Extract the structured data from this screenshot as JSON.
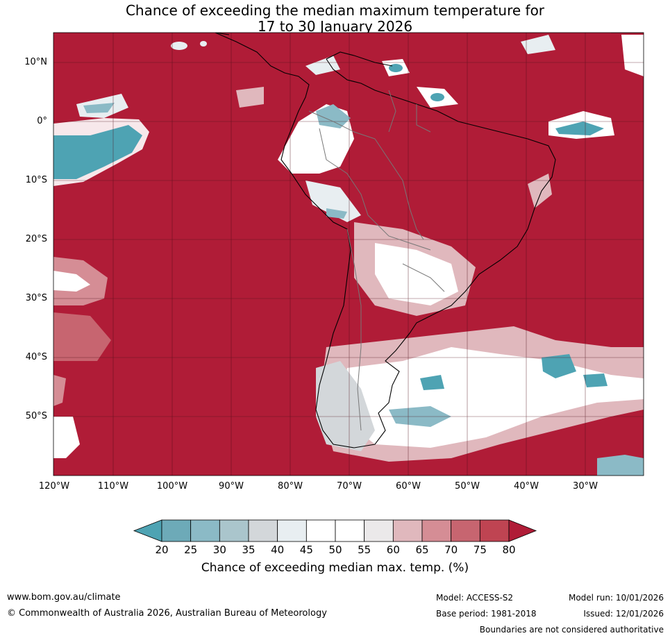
{
  "title": {
    "line1": "Chance of exceeding the median maximum temperature for",
    "line2": "17 to 30 January 2026"
  },
  "map": {
    "background_color": "#b01c37",
    "lat_labels": [
      "10°N",
      "0°",
      "10°S",
      "20°S",
      "30°S",
      "40°S",
      "50°S"
    ],
    "lon_labels": [
      "120°W",
      "110°W",
      "100°W",
      "90°W",
      "80°W",
      "70°W",
      "60°W",
      "50°W",
      "40°W",
      "30°W"
    ]
  },
  "legend": {
    "ticks": [
      "20",
      "25",
      "30",
      "35",
      "40",
      "45",
      "50",
      "55",
      "60",
      "65",
      "70",
      "75",
      "80"
    ],
    "colors": [
      "#4ea3b3",
      "#6daab8",
      "#8bbac6",
      "#aac5cc",
      "#d3d7da",
      "#e8eef1",
      "#ffffff",
      "#ffffff",
      "#ebe9ea",
      "#e0b8bd",
      "#d58d95",
      "#c76570",
      "#bf4452",
      "#b01c37"
    ],
    "label": "Chance of exceeding median max. temp. (%)"
  },
  "footer": {
    "website": "www.bom.gov.au/climate",
    "copyright": "© Commonwealth of Australia 2026, Australian Bureau of Meteorology",
    "model": "Model: ACCESS-S2",
    "base_period": "Base period: 1981-2018",
    "model_run": "Model run: 10/01/2026",
    "issued": "Issued: 12/01/2026",
    "disclaimer": "Boundaries are not considered authoritative"
  }
}
